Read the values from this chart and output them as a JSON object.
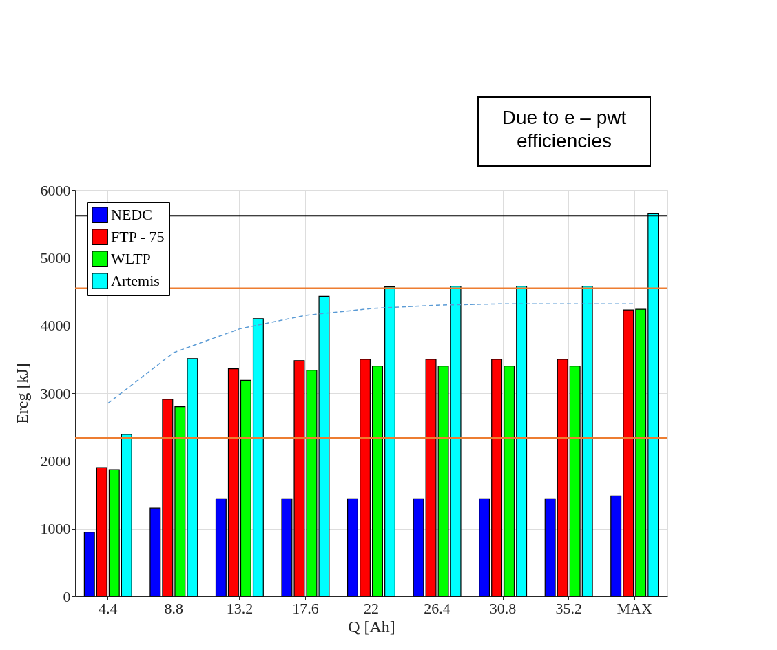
{
  "chart_data": {
    "type": "bar",
    "xlabel": "Q [Ah]",
    "ylabel": "Ereg [kJ]",
    "categories": [
      "4.4",
      "8.8",
      "13.2",
      "17.6",
      "22",
      "26.4",
      "30.8",
      "35.2",
      "MAX"
    ],
    "series": [
      {
        "name": "NEDC",
        "color": "#0000ff",
        "values": [
          950,
          1300,
          1440,
          1440,
          1440,
          1440,
          1440,
          1440,
          1480
        ]
      },
      {
        "name": "FTP - 75",
        "color": "#ff0000",
        "values": [
          1900,
          2910,
          3360,
          3480,
          3500,
          3500,
          3500,
          3500,
          4230
        ]
      },
      {
        "name": "WLTP",
        "color": "#00ff00",
        "values": [
          1870,
          2800,
          3190,
          3340,
          3400,
          3400,
          3400,
          3400,
          4240
        ]
      },
      {
        "name": "Artemis",
        "color": "#00ffff",
        "values": [
          2390,
          3510,
          4100,
          4430,
          4570,
          4580,
          4580,
          4580,
          5650
        ]
      },
      {
        "type": "line",
        "color": "#5b9bd5",
        "line_style": "dashed",
        "values": [
          2850,
          3600,
          3950,
          4150,
          4250,
          4300,
          4320,
          4320,
          4320
        ]
      }
    ],
    "ylim": [
      0,
      6000
    ],
    "yticks": [
      0,
      1000,
      2000,
      3000,
      4000,
      5000,
      6000
    ],
    "ref_lines": [
      {
        "axis": "y",
        "value": 4550,
        "color": "#ed7d31"
      },
      {
        "axis": "y",
        "value": 2340,
        "color": "#ed7d31"
      },
      {
        "axis": "y",
        "value": 5620,
        "color": "#000000"
      }
    ],
    "annotations": [
      "Due to e – pwt efficiencies"
    ],
    "grid": true,
    "legend": "top left"
  }
}
